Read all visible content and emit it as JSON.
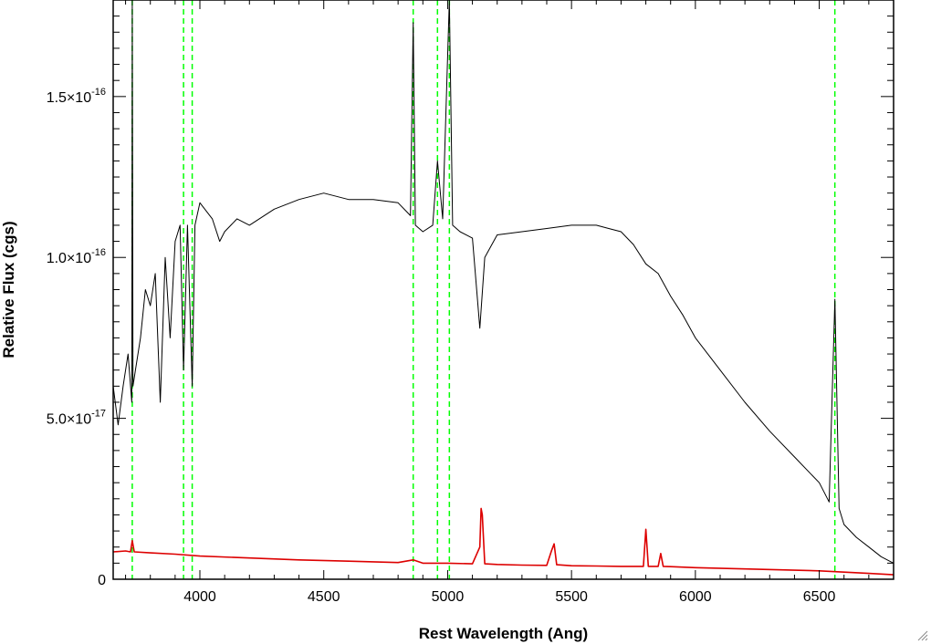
{
  "chart_data": {
    "type": "line",
    "title": "",
    "xlabel": "Rest Wavelength (Ang)",
    "ylabel": "Relative Flux (cgs)",
    "xlim": [
      3650,
      6800
    ],
    "ylim": [
      0,
      1.8e-16
    ],
    "x_ticks": [
      4000,
      4500,
      5000,
      5500,
      6000,
      6500
    ],
    "x_tick_labels": [
      "4000",
      "4500",
      "5000",
      "5500",
      "6000",
      "6500"
    ],
    "y_ticks": [
      0,
      5e-17,
      1e-16,
      1.5e-16
    ],
    "y_tick_labels": [
      {
        "mantissa": "0",
        "exponent": ""
      },
      {
        "mantissa": "5.0×10",
        "exponent": "-17"
      },
      {
        "mantissa": "1.0×10",
        "exponent": "-16"
      },
      {
        "mantissa": "1.5×10",
        "exponent": "-16"
      }
    ],
    "grid": false,
    "legend": "none",
    "reference_lines": {
      "color": "#00ff00",
      "style": "dashed",
      "x": [
        3727,
        3934,
        3969,
        4861,
        4959,
        5007,
        6563
      ]
    },
    "series": [
      {
        "color": "#000000",
        "x": [
          3650,
          3670,
          3690,
          3710,
          3725,
          3727,
          3730,
          3740,
          3760,
          3780,
          3800,
          3820,
          3840,
          3860,
          3880,
          3900,
          3920,
          3934,
          3950,
          3969,
          3980,
          4000,
          4020,
          4050,
          4080,
          4100,
          4150,
          4200,
          4300,
          4400,
          4500,
          4600,
          4700,
          4800,
          4850,
          4861,
          4870,
          4900,
          4940,
          4959,
          4980,
          5007,
          5020,
          5050,
          5100,
          5130,
          5150,
          5200,
          5300,
          5400,
          5500,
          5600,
          5650,
          5700,
          5750,
          5800,
          5850,
          5900,
          5950,
          6000,
          6100,
          6200,
          6300,
          6400,
          6500,
          6540,
          6563,
          6580,
          6600,
          6650,
          6700,
          6750,
          6800
        ],
        "y": [
          6e-17,
          4.8e-17,
          6e-17,
          7e-17,
          5.5e-17,
          1.8e-16,
          6e-17,
          6.5e-17,
          7.5e-17,
          9e-17,
          8.5e-17,
          9.5e-17,
          5.5e-17,
          1e-16,
          7.5e-17,
          1.05e-16,
          1.1e-16,
          6.5e-17,
          1.1e-16,
          6e-17,
          1.1e-16,
          1.17e-16,
          1.15e-16,
          1.12e-16,
          1.05e-16,
          1.08e-16,
          1.12e-16,
          1.1e-16,
          1.15e-16,
          1.18e-16,
          1.2e-16,
          1.18e-16,
          1.18e-16,
          1.17e-16,
          1.13e-16,
          1.73e-16,
          1.1e-16,
          1.08e-16,
          1.1e-16,
          1.3e-16,
          1.12e-16,
          1.8e-16,
          1.1e-16,
          1.08e-16,
          1.06e-16,
          7.8e-17,
          1e-16,
          1.07e-16,
          1.08e-16,
          1.09e-16,
          1.1e-16,
          1.1e-16,
          1.09e-16,
          1.08e-16,
          1.04e-16,
          9.8e-17,
          9.5e-17,
          8.8e-17,
          8.2e-17,
          7.5e-17,
          6.5e-17,
          5.5e-17,
          4.6e-17,
          3.8e-17,
          3e-17,
          2.4e-17,
          8.7e-17,
          2.2e-17,
          1.7e-17,
          1.3e-17,
          1e-17,
          7e-18,
          5e-18
        ]
      },
      {
        "color": "#dd0000",
        "x": [
          3650,
          3700,
          3720,
          3727,
          3735,
          3800,
          3900,
          4000,
          4200,
          4400,
          4600,
          4800,
          4861,
          4900,
          5000,
          5100,
          5130,
          5135,
          5140,
          5150,
          5200,
          5300,
          5400,
          5420,
          5430,
          5440,
          5500,
          5600,
          5700,
          5790,
          5800,
          5810,
          5850,
          5860,
          5870,
          5900,
          6000,
          6200,
          6400,
          6500,
          6600,
          6700,
          6800
        ],
        "y": [
          8.5e-18,
          8.8e-18,
          8.5e-18,
          1.2e-17,
          8.5e-18,
          8.2e-18,
          7.8e-18,
          7.2e-18,
          6.6e-18,
          6e-18,
          5.6e-18,
          5.2e-18,
          6e-18,
          5e-18,
          5e-18,
          4.8e-18,
          1e-17,
          2.2e-17,
          2e-17,
          4.8e-18,
          4.6e-18,
          4.4e-18,
          4.3e-18,
          9e-18,
          1.1e-17,
          4.5e-18,
          4.2e-18,
          4.1e-18,
          4e-18,
          4e-18,
          1.55e-17,
          4e-18,
          4e-18,
          8e-18,
          4e-18,
          3.9e-18,
          3.6e-18,
          3.2e-18,
          2.8e-18,
          2.6e-18,
          2.2e-18,
          1.8e-18,
          1.4e-18
        ]
      }
    ]
  },
  "window": {
    "resize_icon": "resize-grip-icon"
  }
}
